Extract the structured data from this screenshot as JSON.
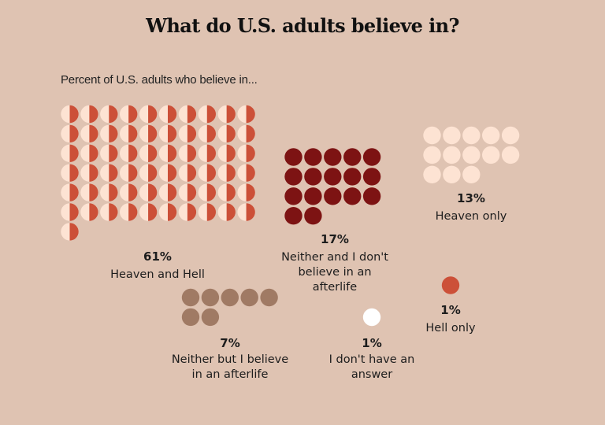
{
  "title": "What do U.S. adults believe in?",
  "subtitle": "Percent of U.S. adults who believe in...",
  "colors": {
    "background": "#dfc3b2",
    "heaven": "#fde3d3",
    "hell": "#cc5038",
    "neither_no_afterlife": "#7d1313",
    "neither_afterlife": "#a07a64",
    "no_answer": "#ffffff"
  },
  "chart_data": {
    "type": "waffle",
    "title": "What do U.S. adults believe in?",
    "subtitle": "Percent of U.S. adults who believe in...",
    "unit": "percent of U.S. adults (one dot = 1%)",
    "categories": [
      {
        "key": "heaven_and_hell",
        "label": "Heaven and Hell",
        "value": 61,
        "value_label": "61%",
        "style": "half-heaven-half-hell",
        "columns": 10
      },
      {
        "key": "neither_no_afterlife",
        "label": "Neither and I don't believe in an afterlife",
        "label_lines": [
          "Neither and I don't",
          "believe in an",
          "afterlife"
        ],
        "value": 17,
        "value_label": "17%",
        "style": "neither_no_afterlife",
        "columns": 5
      },
      {
        "key": "heaven_only",
        "label": "Heaven only",
        "label_lines": [
          "Heaven only"
        ],
        "value": 13,
        "value_label": "13%",
        "style": "heaven",
        "columns": 5
      },
      {
        "key": "neither_afterlife",
        "label": "Neither but I believe in an afterlife",
        "label_lines": [
          "Neither but I believe",
          "in an afterlife"
        ],
        "value": 7,
        "value_label": "7%",
        "style": "neither_afterlife",
        "columns": 5
      },
      {
        "key": "no_answer",
        "label": "I don't have an answer",
        "label_lines": [
          "I don't have an",
          "answer"
        ],
        "value": 1,
        "value_label": "1%",
        "style": "no_answer",
        "columns": 1
      },
      {
        "key": "hell_only",
        "label": "Hell only",
        "label_lines": [
          "Hell only"
        ],
        "value": 1,
        "value_label": "1%",
        "style": "hell",
        "columns": 1
      }
    ]
  }
}
